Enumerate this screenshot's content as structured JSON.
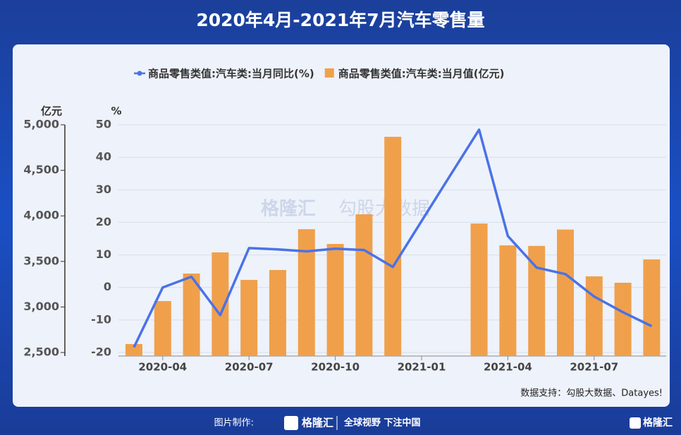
{
  "chart_data": {
    "type": "bar_line",
    "title": "2020年4月-2021年7月汽车零售量",
    "y_unit": "亿元",
    "y2_unit": "%",
    "categories": [
      null,
      "2020-04",
      null,
      null,
      "2020-07",
      null,
      null,
      "2020-10",
      null,
      null,
      "2021-01",
      null,
      null,
      "2021-04",
      null,
      null,
      "2021-07",
      null,
      null
    ],
    "series": [
      {
        "name": "商品零售类值:汽车类:当月值(亿元)",
        "type": "bar",
        "color": "#f0a04b",
        "values": [
          2593,
          3065,
          3367,
          3599,
          3297,
          3406,
          3854,
          3692,
          4017,
          4868,
          null,
          null,
          3916,
          3676,
          3670,
          3850,
          3336,
          3266,
          3522
        ]
      },
      {
        "name": "商品零售类值:汽车类:当月同比(%)",
        "type": "line",
        "axis": "y2",
        "color": "#4a72e8",
        "values": [
          -18.4,
          0,
          3.3,
          -8.5,
          12.1,
          11.7,
          11.1,
          11.9,
          11.5,
          6.3,
          20.4,
          34.5,
          48.5,
          15.8,
          6.1,
          4.1,
          -2.8,
          -7.6,
          -11.9
        ]
      }
    ],
    "ylim": [
      2500,
      5000
    ],
    "yticks": [
      {
        "value": 2500,
        "label": "2,500"
      },
      {
        "value": 3000,
        "label": "3,000"
      },
      {
        "value": 3500,
        "label": "3,500"
      },
      {
        "value": 4000,
        "label": "4,000"
      },
      {
        "value": 4500,
        "label": "4,500"
      },
      {
        "value": 5000,
        "label": "5,000"
      }
    ],
    "y2lim": [
      -20,
      50
    ],
    "y2ticks": [
      -20,
      -10,
      0,
      10,
      20,
      30,
      40,
      50
    ],
    "grid": true,
    "source": "数据支持：勾股大数据、Datayes!",
    "watermark": [
      "格隆汇",
      "勾股大数据"
    ],
    "footer": {
      "made_by": "图片制作:",
      "logo": "格隆汇",
      "slogan": "全球视野 下注中国",
      "corner": "格隆汇"
    }
  }
}
